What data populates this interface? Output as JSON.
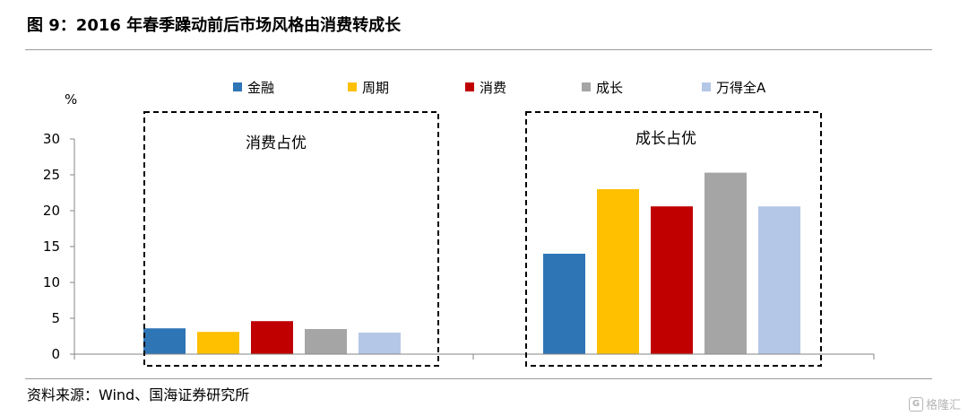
{
  "title": "图 9：2016 年春季躁动前后市场风格由消费转成长",
  "source": "资料来源：Wind、国海证券研究所",
  "watermark": "格隆汇",
  "colors": {
    "金融": "#2e75b6",
    "周期": "#ffc000",
    "消费": "#c00000",
    "成长": "#a5a5a5",
    "万得全A": "#b4c7e7"
  },
  "chart_data": {
    "type": "bar",
    "ylabel": "%",
    "ylim": [
      0,
      30
    ],
    "yticks": [
      0,
      5,
      10,
      15,
      20,
      25,
      30
    ],
    "categories": [
      "",
      ""
    ],
    "series": [
      {
        "name": "金融",
        "values": [
          3.6,
          14.0
        ]
      },
      {
        "name": "周期",
        "values": [
          3.1,
          23.0
        ]
      },
      {
        "name": "消费",
        "values": [
          4.6,
          20.6
        ]
      },
      {
        "name": "成长",
        "values": [
          3.5,
          25.3
        ]
      },
      {
        "name": "万得全A",
        "values": [
          3.0,
          20.6
        ]
      }
    ],
    "annotations": [
      "消费占优",
      "成长占优"
    ],
    "legend_position": "top"
  }
}
